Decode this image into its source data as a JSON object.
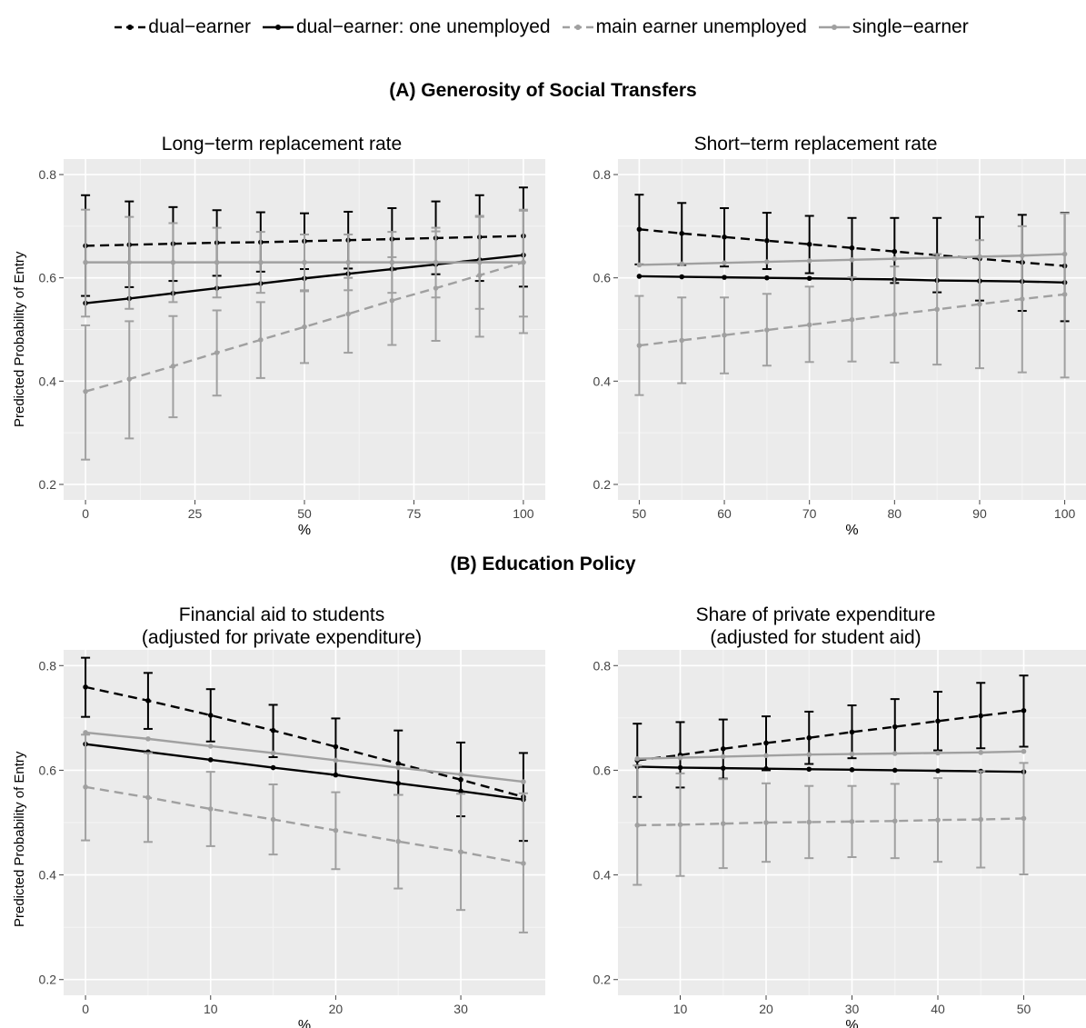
{
  "legend": {
    "items": [
      {
        "label": "dual−earner",
        "color": "#000000",
        "dash": true
      },
      {
        "label": "dual−earner: one unemployed",
        "color": "#000000",
        "dash": false
      },
      {
        "label": "main earner unemployed",
        "color": "#a0a0a0",
        "dash": true
      },
      {
        "label": "single−earner",
        "color": "#a0a0a0",
        "dash": false
      }
    ]
  },
  "sections": {
    "a": "(A) Generosity of Social Transfers",
    "b": "(B) Education Policy"
  },
  "ylabel": "Predicted Probability of Entry",
  "chart_data": [
    {
      "type": "line",
      "title": "Long−term replacement rate",
      "xlabel": "%",
      "ylabel": "Predicted Probability of Entry",
      "xlim": [
        -5,
        105
      ],
      "ylim": [
        0.17,
        0.83
      ],
      "xticks": [
        0,
        25,
        50,
        75,
        100
      ],
      "yticks": [
        0.2,
        0.4,
        0.6,
        0.8
      ],
      "x": [
        0,
        10,
        20,
        30,
        40,
        50,
        60,
        70,
        80,
        90,
        100
      ],
      "series": [
        {
          "name": "dual−earner",
          "values": [
            0.662,
            0.664,
            0.666,
            0.668,
            0.669,
            0.671,
            0.673,
            0.675,
            0.677,
            0.679,
            0.681
          ],
          "lower": [
            0.565,
            0.582,
            0.594,
            0.604,
            0.612,
            0.617,
            0.618,
            0.616,
            0.607,
            0.594,
            0.583
          ],
          "upper": [
            0.76,
            0.748,
            0.737,
            0.731,
            0.727,
            0.725,
            0.728,
            0.735,
            0.748,
            0.76,
            0.775
          ]
        },
        {
          "name": "dual−earner: one unemployed",
          "values": [
            0.551,
            0.56,
            0.57,
            0.58,
            0.589,
            0.599,
            0.608,
            0.617,
            0.626,
            0.635,
            0.644
          ]
        },
        {
          "name": "main earner unemployed",
          "values": [
            0.38,
            0.404,
            0.429,
            0.455,
            0.48,
            0.505,
            0.53,
            0.556,
            0.58,
            0.605,
            0.63
          ],
          "lower": [
            0.248,
            0.289,
            0.33,
            0.372,
            0.406,
            0.435,
            0.455,
            0.47,
            0.478,
            0.486,
            0.493
          ],
          "upper": [
            0.508,
            0.516,
            0.526,
            0.537,
            0.553,
            0.574,
            0.6,
            0.64,
            0.69,
            0.72,
            0.73
          ]
        },
        {
          "name": "single−earner",
          "values": [
            0.63,
            0.63,
            0.63,
            0.63,
            0.63,
            0.63,
            0.63,
            0.63,
            0.63,
            0.63,
            0.63
          ],
          "lower": [
            0.525,
            0.54,
            0.553,
            0.562,
            0.571,
            0.576,
            0.576,
            0.571,
            0.562,
            0.54,
            0.525
          ],
          "upper": [
            0.732,
            0.718,
            0.706,
            0.697,
            0.689,
            0.684,
            0.684,
            0.689,
            0.697,
            0.718,
            0.732
          ]
        }
      ]
    },
    {
      "type": "line",
      "title": "Short−term replacement rate",
      "xlabel": "%",
      "xlim": [
        47.5,
        102.5
      ],
      "ylim": [
        0.17,
        0.83
      ],
      "xticks": [
        50,
        60,
        70,
        80,
        90,
        100
      ],
      "yticks": [
        0.2,
        0.4,
        0.6,
        0.8
      ],
      "x": [
        50,
        55,
        60,
        65,
        70,
        75,
        80,
        85,
        90,
        95,
        100
      ],
      "series": [
        {
          "name": "dual−earner",
          "values": [
            0.694,
            0.686,
            0.679,
            0.672,
            0.665,
            0.658,
            0.651,
            0.644,
            0.637,
            0.63,
            0.623
          ],
          "lower": [
            0.626,
            0.625,
            0.622,
            0.617,
            0.609,
            0.6,
            0.59,
            0.572,
            0.556,
            0.536,
            0.516
          ],
          "upper": [
            0.761,
            0.745,
            0.735,
            0.726,
            0.72,
            0.716,
            0.716,
            0.716,
            0.718,
            0.722,
            0.726
          ]
        },
        {
          "name": "dual−earner: one unemployed",
          "values": [
            0.603,
            0.602,
            0.601,
            0.6,
            0.599,
            0.598,
            0.597,
            0.595,
            0.594,
            0.593,
            0.591
          ]
        },
        {
          "name": "main earner unemployed",
          "values": [
            0.469,
            0.479,
            0.489,
            0.499,
            0.509,
            0.519,
            0.529,
            0.539,
            0.549,
            0.559,
            0.568
          ],
          "lower": [
            0.373,
            0.396,
            0.415,
            0.43,
            0.437,
            0.438,
            0.436,
            0.432,
            0.425,
            0.417,
            0.407
          ],
          "upper": [
            0.565,
            0.562,
            0.562,
            0.569,
            0.583,
            0.601,
            0.622,
            0.646,
            0.673,
            0.7,
            0.725
          ]
        },
        {
          "name": "single−earner",
          "values": [
            0.625,
            0.627,
            0.629,
            0.631,
            0.633,
            0.635,
            0.637,
            0.639,
            0.641,
            0.643,
            0.646
          ]
        }
      ]
    },
    {
      "type": "line",
      "title": "Financial aid to students",
      "subtitle": "(adjusted for private expenditure)",
      "xlabel": "%",
      "ylabel": "Predicted Probability of Entry",
      "xlim": [
        -1.75,
        36.75
      ],
      "ylim": [
        0.17,
        0.83
      ],
      "xticks": [
        0,
        10,
        20,
        30
      ],
      "yticks": [
        0.2,
        0.4,
        0.6,
        0.8
      ],
      "x": [
        0,
        5,
        10,
        15,
        20,
        25,
        30,
        35
      ],
      "series": [
        {
          "name": "dual−earner",
          "values": [
            0.759,
            0.733,
            0.705,
            0.676,
            0.645,
            0.613,
            0.582,
            0.549
          ],
          "lower": [
            0.702,
            0.679,
            0.655,
            0.625,
            0.591,
            0.553,
            0.512,
            0.465
          ],
          "upper": [
            0.815,
            0.786,
            0.755,
            0.725,
            0.699,
            0.676,
            0.653,
            0.633
          ]
        },
        {
          "name": "dual−earner: one unemployed",
          "values": [
            0.65,
            0.635,
            0.62,
            0.605,
            0.591,
            0.575,
            0.56,
            0.544
          ]
        },
        {
          "name": "main earner unemployed",
          "values": [
            0.568,
            0.548,
            0.526,
            0.506,
            0.485,
            0.464,
            0.444,
            0.422
          ],
          "lower": [
            0.466,
            0.463,
            0.455,
            0.439,
            0.411,
            0.374,
            0.333,
            0.29
          ],
          "upper": [
            0.668,
            0.633,
            0.597,
            0.573,
            0.558,
            0.553,
            0.555,
            0.556
          ]
        },
        {
          "name": "single−earner",
          "values": [
            0.672,
            0.66,
            0.646,
            0.633,
            0.619,
            0.605,
            0.592,
            0.578
          ]
        }
      ]
    },
    {
      "type": "line",
      "title": "Share of private expenditure",
      "subtitle": "(adjusted for student aid)",
      "xlabel": "%",
      "xlim": [
        2.75,
        57.25
      ],
      "ylim": [
        0.17,
        0.83
      ],
      "xticks": [
        10,
        20,
        30,
        40,
        50
      ],
      "yticks": [
        0.2,
        0.4,
        0.6,
        0.8
      ],
      "x": [
        5,
        10,
        15,
        20,
        25,
        30,
        35,
        40,
        45,
        50
      ],
      "series": [
        {
          "name": "dual−earner",
          "values": [
            0.619,
            0.629,
            0.641,
            0.652,
            0.662,
            0.673,
            0.683,
            0.694,
            0.704,
            0.714
          ],
          "lower": [
            0.549,
            0.567,
            0.584,
            0.6,
            0.612,
            0.623,
            0.632,
            0.638,
            0.642,
            0.645
          ],
          "upper": [
            0.689,
            0.692,
            0.697,
            0.703,
            0.712,
            0.724,
            0.736,
            0.75,
            0.767,
            0.781
          ]
        },
        {
          "name": "dual−earner: one unemployed",
          "values": [
            0.607,
            0.605,
            0.604,
            0.603,
            0.602,
            0.601,
            0.6,
            0.599,
            0.598,
            0.597
          ]
        },
        {
          "name": "main earner unemployed",
          "values": [
            0.495,
            0.496,
            0.498,
            0.5,
            0.501,
            0.502,
            0.503,
            0.505,
            0.506,
            0.508
          ],
          "lower": [
            0.381,
            0.398,
            0.413,
            0.425,
            0.432,
            0.434,
            0.432,
            0.425,
            0.414,
            0.401
          ],
          "upper": [
            0.609,
            0.594,
            0.583,
            0.575,
            0.57,
            0.57,
            0.574,
            0.585,
            0.598,
            0.614
          ]
        },
        {
          "name": "single−earner",
          "values": [
            0.622,
            0.624,
            0.626,
            0.628,
            0.63,
            0.631,
            0.632,
            0.633,
            0.634,
            0.636
          ]
        }
      ]
    }
  ]
}
